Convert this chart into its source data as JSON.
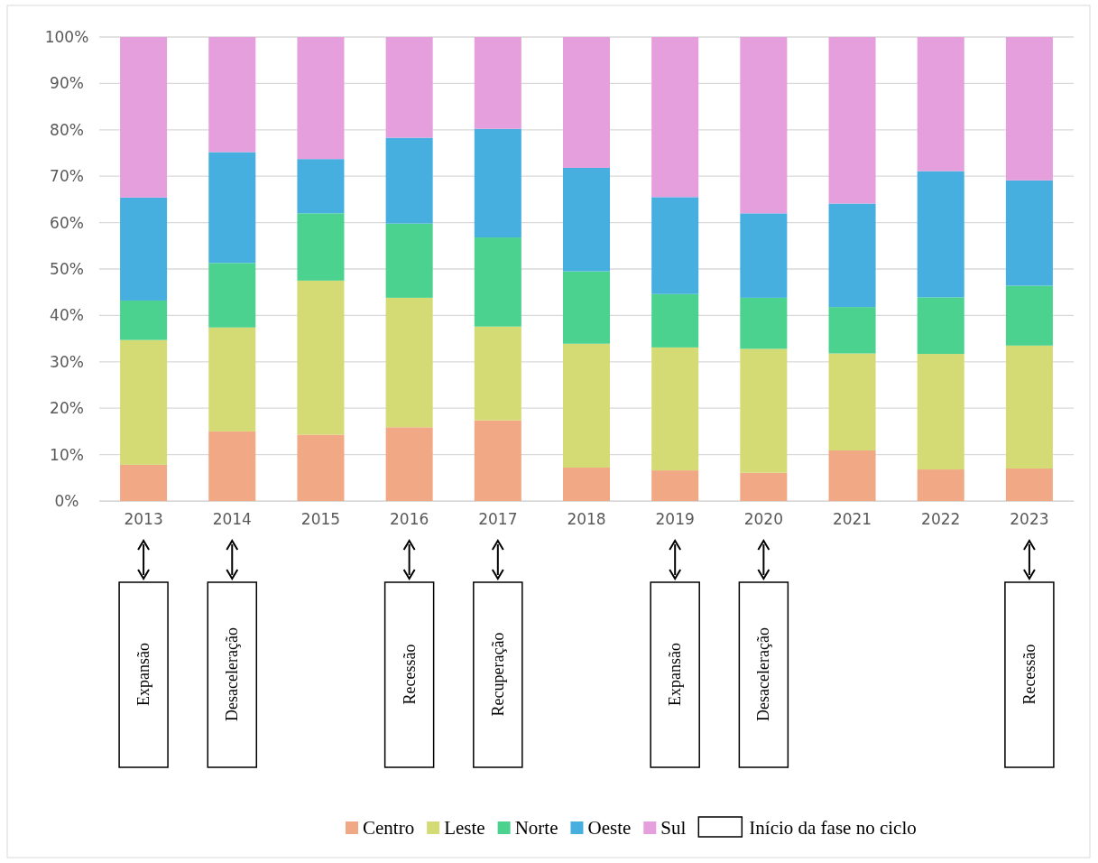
{
  "chart_data": {
    "type": "bar",
    "stacked": true,
    "categories": [
      "2013",
      "2014",
      "2015",
      "2016",
      "2017",
      "2018",
      "2019",
      "2020",
      "2021",
      "2022",
      "2023"
    ],
    "series": [
      {
        "name": "Centro",
        "color": "#f1a985",
        "values": [
          7.8,
          15,
          14.3,
          15.9,
          17.4,
          7.2,
          6.6,
          6.1,
          10.9,
          6.8,
          7.0
        ]
      },
      {
        "name": "Leste",
        "color": "#d4db74",
        "values": [
          26.9,
          22.4,
          33.2,
          27.9,
          20.2,
          26.7,
          26.5,
          26.7,
          20.9,
          24.9,
          26.5
        ]
      },
      {
        "name": "Norte",
        "color": "#4bd28e",
        "values": [
          8.5,
          13.9,
          14.5,
          16.0,
          19.2,
          15.6,
          11.5,
          11.0,
          10.0,
          12.2,
          12.9
        ]
      },
      {
        "name": "Oeste",
        "color": "#47afdf",
        "values": [
          22.2,
          23.9,
          11.7,
          18.5,
          23.4,
          22.3,
          20.9,
          18.2,
          22.3,
          27.2,
          22.7
        ]
      },
      {
        "name": "Sul",
        "color": "#e49fdc",
        "values": [
          34.6,
          24.8,
          26.3,
          21.7,
          19.8,
          28.2,
          34.5,
          38.0,
          35.9,
          28.9,
          30.9
        ]
      }
    ],
    "ylim": [
      0,
      100
    ],
    "yticks": [
      {
        "value": 0,
        "label": "0%"
      },
      {
        "value": 10,
        "label": "10%"
      },
      {
        "value": 20,
        "label": "20%"
      },
      {
        "value": 30,
        "label": "30%"
      },
      {
        "value": 40,
        "label": "40%"
      },
      {
        "value": 50,
        "label": "50%"
      },
      {
        "value": 60,
        "label": "60%"
      },
      {
        "value": 70,
        "label": "70%"
      },
      {
        "value": 80,
        "label": "80%"
      },
      {
        "value": 90,
        "label": "90%"
      },
      {
        "value": 100,
        "label": "100%"
      }
    ],
    "grid": "y",
    "legend": "bottom",
    "annotations": [
      "Expansão",
      "Desaceleração",
      "Recessão",
      "Recuperação",
      "Expansão",
      "Desaceleração",
      "Recessão",
      "Início da fase no ciclo"
    ]
  }
}
